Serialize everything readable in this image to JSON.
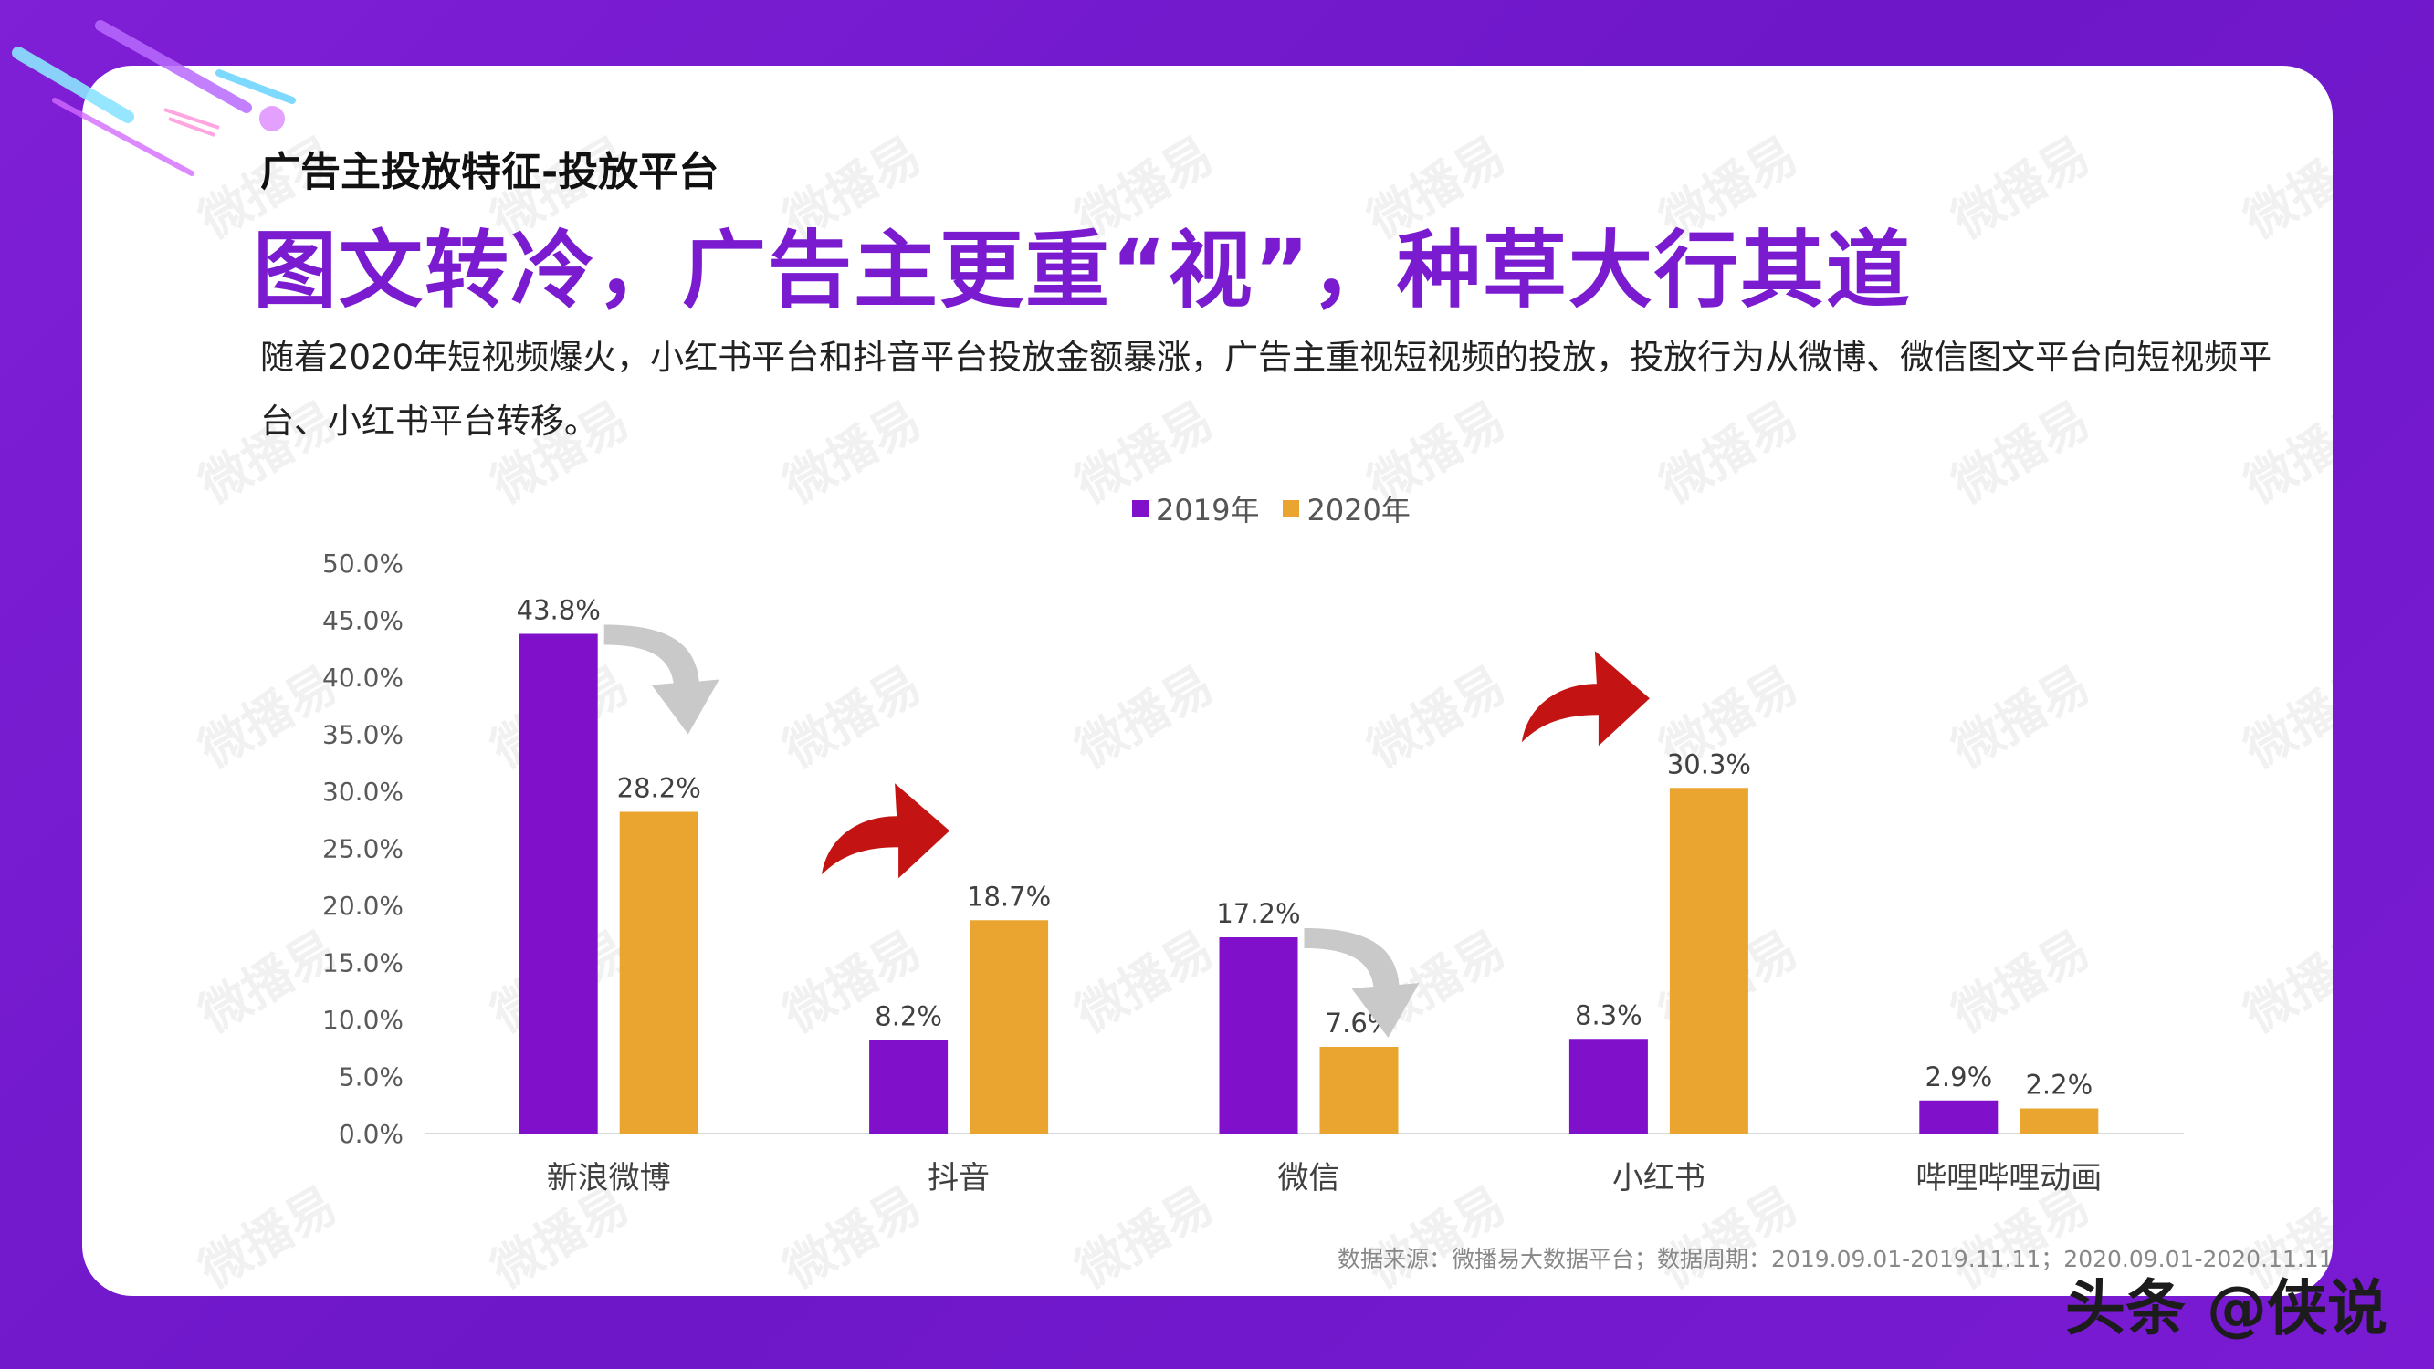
{
  "subtitle": "广告主投放特征-投放平台",
  "headline": "图文转冷，广告主更重“视”，种草大行其道",
  "description": "随着2020年短视频爆火，小红书平台和抖音平台投放金额暴涨，广告主重视短视频的投放，投放行为从微博、微信图文平台向短视频平台、小红书平台转移。",
  "watermark": "微播易",
  "source_note": "数据来源：微播易大数据平台；数据周期：2019.09.01-2019.11.11；2020.09.01-2020.11.11",
  "brand_tag": "头条 @侠说",
  "colors": {
    "series_2019": "#8010c9",
    "series_2020": "#e9a530",
    "arrow_up": "#c41313",
    "arrow_down": "#c9c9c9"
  },
  "chart_data": {
    "type": "bar",
    "categories": [
      "新浪微博",
      "抖音",
      "微信",
      "小红书",
      "哔哩哔哩动画"
    ],
    "series": [
      {
        "name": "2019年",
        "values": [
          43.8,
          8.2,
          17.2,
          8.3,
          2.9
        ],
        "labels": [
          "43.8%",
          "8.2%",
          "17.2%",
          "8.3%",
          "2.9%"
        ]
      },
      {
        "name": "2020年",
        "values": [
          28.2,
          18.7,
          7.6,
          30.3,
          2.2
        ],
        "labels": [
          "28.2%",
          "18.7%",
          "7.6%",
          "30.3%",
          "2.2%"
        ]
      }
    ],
    "ylim": [
      0,
      50
    ],
    "yticks": [
      "0.0%",
      "5.0%",
      "10.0%",
      "15.0%",
      "20.0%",
      "25.0%",
      "30.0%",
      "35.0%",
      "40.0%",
      "45.0%",
      "50.0%"
    ],
    "legend_position": "top-center",
    "grid": false,
    "trend_arrows": [
      "down",
      "up",
      "down",
      "up",
      "none"
    ]
  }
}
